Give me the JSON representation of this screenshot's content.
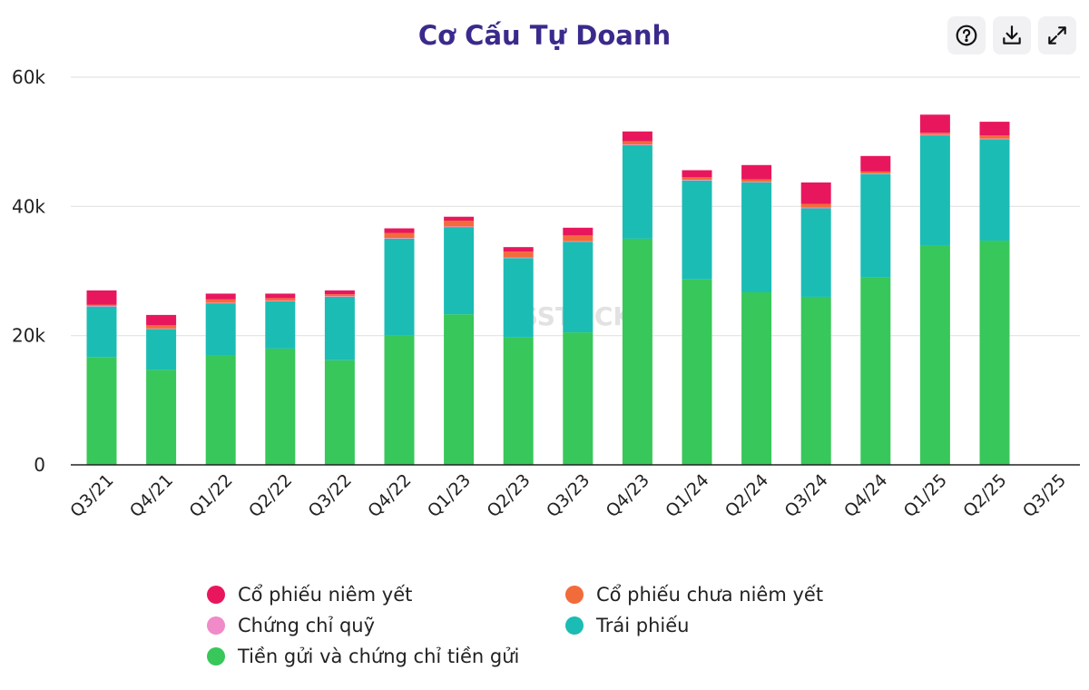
{
  "title": "Cơ Cấu Tự Doanh",
  "toolbar": [
    {
      "name": "help-icon"
    },
    {
      "name": "download-icon"
    },
    {
      "name": "expand-icon"
    }
  ],
  "watermark": "SSTOCK",
  "legend": [
    {
      "label": "Cổ phiếu niêm yết",
      "color": "#e8175d"
    },
    {
      "label": "Cổ phiếu chưa niêm yết",
      "color": "#f26b3a"
    },
    {
      "label": "Chứng chỉ quỹ",
      "color": "#f08ac8"
    },
    {
      "label": "Trái phiếu",
      "color": "#1bbcb4"
    },
    {
      "label": "Tiền gửi và chứng chỉ tiền gửi",
      "color": "#38c75a"
    }
  ],
  "chart_data": {
    "type": "bar",
    "stacked": true,
    "categories": [
      "Q3/21",
      "Q4/21",
      "Q1/22",
      "Q2/22",
      "Q3/22",
      "Q4/22",
      "Q1/23",
      "Q2/23",
      "Q3/23",
      "Q4/23",
      "Q1/24",
      "Q2/24",
      "Q3/24",
      "Q4/24",
      "Q1/25",
      "Q2/25",
      "Q3/25"
    ],
    "ylim": [
      0,
      60000
    ],
    "yticks": [
      {
        "value": 0,
        "label": "0"
      },
      {
        "value": 20000,
        "label": "20k"
      },
      {
        "value": 40000,
        "label": "40k"
      },
      {
        "value": 60000,
        "label": "60k"
      }
    ],
    "grid": true,
    "legend_position": "bottom",
    "series": [
      {
        "name": "Tiền gửi và chứng chỉ tiền gửi",
        "color": "#38c75a",
        "values": [
          16700,
          14700,
          17000,
          18000,
          16200,
          20000,
          23300,
          19700,
          20500,
          35000,
          28700,
          26700,
          26000,
          29000,
          34000,
          34700,
          null
        ]
      },
      {
        "name": "Trái phiếu",
        "color": "#1bbcb4",
        "values": [
          7800,
          6300,
          8000,
          7300,
          9800,
          15000,
          13500,
          12300,
          14000,
          14500,
          15300,
          17000,
          13700,
          16000,
          17000,
          15700,
          null
        ]
      },
      {
        "name": "Chứng chỉ quỹ",
        "color": "#f08ac8",
        "values": [
          100,
          100,
          100,
          100,
          100,
          100,
          100,
          100,
          100,
          100,
          100,
          100,
          100,
          100,
          100,
          100,
          null
        ]
      },
      {
        "name": "Cổ phiếu chưa niêm yết",
        "color": "#f26b3a",
        "values": [
          200,
          500,
          500,
          400,
          300,
          800,
          900,
          900,
          900,
          500,
          400,
          400,
          600,
          300,
          300,
          500,
          null
        ]
      },
      {
        "name": "Cổ phiếu niêm yết",
        "color": "#e8175d",
        "values": [
          2200,
          1600,
          900,
          700,
          600,
          700,
          600,
          700,
          1200,
          1500,
          1100,
          2200,
          3300,
          2400,
          2800,
          2100,
          null
        ]
      }
    ]
  }
}
